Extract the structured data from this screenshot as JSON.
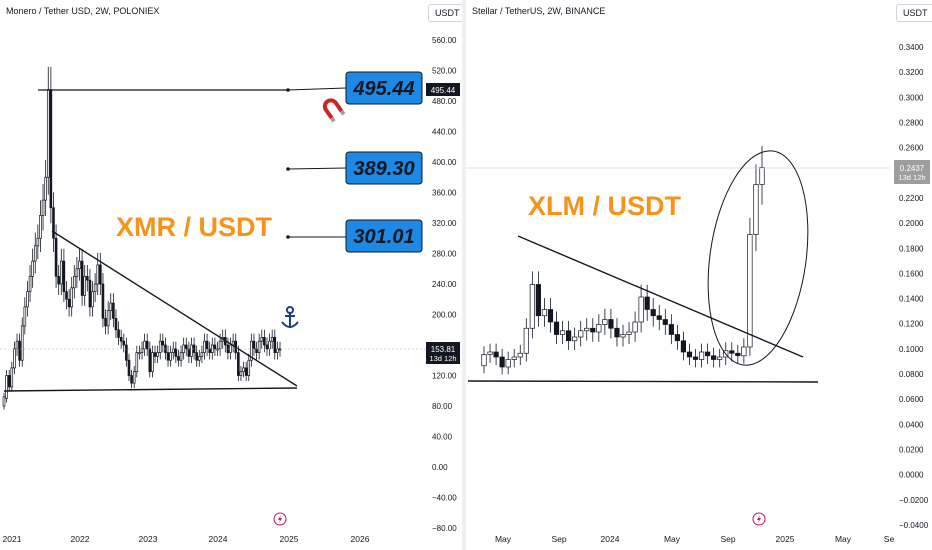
{
  "left": {
    "header": "Monero / Tether USD, 2W, POLONIEX",
    "currency": "USDT",
    "chart_title": "XMR / USDT",
    "targets": [
      "495.44",
      "389.30",
      "301.01"
    ],
    "price_label": "495.44",
    "last_price": "153.81",
    "countdown": "13d 12h"
  },
  "right": {
    "header": "Stellar / TetherUS, 2W, BINANCE",
    "currency": "USDT",
    "chart_title": "XLM / USDT",
    "last_price": "0.2437",
    "countdown": "13d 12h"
  },
  "colors": {
    "title": "#f7931a",
    "target_box": "#1e88e5",
    "bull": "#9e9e9e",
    "bear": "#131722"
  },
  "icons": {
    "left_overlay": [
      "magnet-icon",
      "anchor-icon",
      "lightning-icon"
    ],
    "right_overlay": [
      "lightning-icon"
    ]
  },
  "chart_data": [
    {
      "type": "candlestick",
      "title": "Monero / Tether USD, 2W, POLONIEX",
      "y_ticks": [
        "560.00",
        "520.00",
        "480.00",
        "440.00",
        "400.00",
        "360.00",
        "320.00",
        "280.00",
        "240.00",
        "200.00",
        "160.00",
        "120.00",
        "80.00",
        "40.00",
        "0.00",
        "−40.00",
        "−80.00"
      ],
      "x_ticks": [
        "2021",
        "2022",
        "2023",
        "2024",
        "2025",
        "2026"
      ],
      "ylim": [
        -80,
        560
      ],
      "series": [
        {
          "close": [
            92,
            120,
            105,
            130,
            155,
            165,
            140,
            185,
            210,
            230,
            250,
            270,
            290,
            300,
            330,
            350,
            380,
            495,
            340,
            300,
            250,
            240,
            270,
            230,
            220,
            210,
            235,
            250,
            260,
            270,
            225,
            250,
            245,
            210,
            230,
            240,
            265,
            240,
            195,
            185,
            205,
            215,
            195,
            180,
            170,
            165,
            160,
            140,
            120,
            110,
            125,
            150,
            150,
            155,
            165,
            155,
            125,
            150,
            145,
            150,
            165,
            160,
            150,
            140,
            150,
            155,
            145,
            140,
            150,
            160,
            155,
            145,
            160,
            150,
            140,
            145,
            150,
            165,
            155,
            150,
            160,
            155,
            155,
            165,
            170,
            160,
            150,
            160,
            165,
            150,
            120,
            125,
            130,
            120,
            140,
            165,
            155,
            150,
            165,
            170,
            160,
            155,
            165,
            170,
            150,
            155,
            153.81
          ],
          "open": [
            80,
            90,
            120,
            105,
            130,
            155,
            165,
            140,
            185,
            210,
            230,
            250,
            270,
            290,
            300,
            330,
            350,
            380,
            495,
            340,
            300,
            250,
            240,
            270,
            230,
            220,
            210,
            235,
            250,
            260,
            270,
            225,
            250,
            245,
            210,
            230,
            240,
            265,
            240,
            195,
            185,
            205,
            215,
            195,
            180,
            170,
            165,
            160,
            140,
            120,
            110,
            125,
            150,
            150,
            155,
            165,
            155,
            125,
            150,
            145,
            150,
            165,
            160,
            150,
            140,
            150,
            155,
            145,
            140,
            150,
            160,
            155,
            145,
            160,
            150,
            140,
            145,
            150,
            165,
            155,
            150,
            160,
            155,
            155,
            165,
            170,
            160,
            150,
            160,
            165,
            150,
            120,
            125,
            130,
            120,
            140,
            165,
            155,
            150,
            165,
            170,
            160,
            155,
            165,
            170,
            150,
            155
          ]
        }
      ],
      "annotations": [
        "XMR / USDT",
        "495.44",
        "389.30",
        "301.01"
      ]
    },
    {
      "type": "candlestick",
      "title": "Stellar / TetherUS, 2W, BINANCE",
      "y_ticks": [
        "0.3400",
        "0.3200",
        "0.3000",
        "0.2800",
        "0.2600",
        "0.2400",
        "0.2200",
        "0.2000",
        "0.1800",
        "0.1600",
        "0.1400",
        "0.1200",
        "0.1000",
        "0.0800",
        "0.0600",
        "0.0400",
        "0.0200",
        "0.0000",
        "−0.0200",
        "−0.0400"
      ],
      "x_ticks": [
        "May",
        "Sep",
        "2024",
        "May",
        "Sep",
        "2025",
        "May",
        "Se"
      ],
      "ylim": [
        -0.04,
        0.35
      ],
      "series": [
        {
          "open": [
            0.085,
            0.094,
            0.096,
            0.092,
            0.084,
            0.09,
            0.092,
            0.095,
            0.115,
            0.15,
            0.125,
            0.13,
            0.12,
            0.11,
            0.113,
            0.105,
            0.108,
            0.113,
            0.115,
            0.112,
            0.118,
            0.122,
            0.115,
            0.108,
            0.11,
            0.112,
            0.12,
            0.14,
            0.13,
            0.125,
            0.122,
            0.118,
            0.11,
            0.105,
            0.096,
            0.092,
            0.09,
            0.096,
            0.093,
            0.09,
            0.092,
            0.097,
            0.095,
            0.093,
            0.1,
            0.19,
            0.23
          ],
          "close": [
            0.094,
            0.096,
            0.092,
            0.084,
            0.09,
            0.092,
            0.095,
            0.115,
            0.15,
            0.125,
            0.13,
            0.12,
            0.11,
            0.113,
            0.105,
            0.108,
            0.113,
            0.115,
            0.112,
            0.118,
            0.122,
            0.115,
            0.108,
            0.11,
            0.112,
            0.12,
            0.14,
            0.13,
            0.125,
            0.122,
            0.118,
            0.11,
            0.105,
            0.096,
            0.092,
            0.09,
            0.096,
            0.093,
            0.09,
            0.092,
            0.097,
            0.095,
            0.093,
            0.1,
            0.19,
            0.23,
            0.2437
          ]
        }
      ],
      "annotations": [
        "XLM / USDT"
      ]
    }
  ]
}
